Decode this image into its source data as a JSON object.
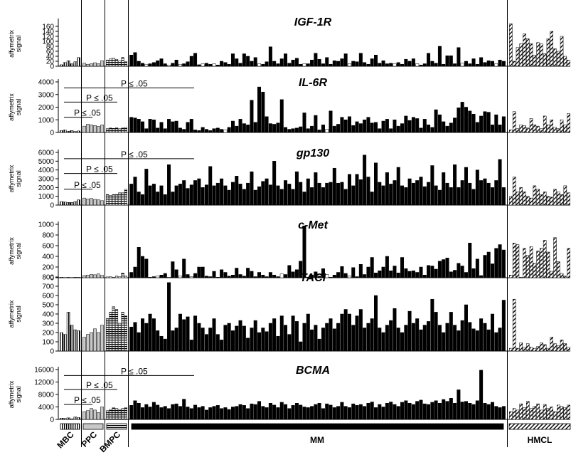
{
  "figure": {
    "y_axis_label_line1": "affymetrix",
    "y_axis_label_line2": "signal",
    "groups": [
      {
        "label": "MBC",
        "count": 6
      },
      {
        "label": "PPC",
        "count": 6
      },
      {
        "label": "BMPC",
        "count": 7
      },
      {
        "label": "MM",
        "count": 100
      },
      {
        "label": "HMCL",
        "count": 18
      }
    ]
  },
  "colors": {
    "mm": "#000000",
    "background": "#ffffff",
    "axis": "#000000"
  },
  "chart_data": [
    {
      "type": "bar",
      "title": "IGF-1R",
      "ylim": [
        0,
        180
      ],
      "yticks": [
        0,
        20,
        40,
        60,
        80,
        100,
        120,
        140,
        160
      ],
      "annotations": [],
      "groups": {
        "MBC": [
          6,
          15,
          22,
          10,
          18,
          35
        ],
        "PPC": [
          12,
          8,
          10,
          14,
          10,
          22
        ],
        "BMPC": [
          25,
          30,
          32,
          28,
          22,
          35,
          18
        ],
        "MM": [
          45,
          55,
          20,
          12,
          8,
          10,
          15,
          22,
          30,
          10,
          5,
          12,
          25,
          8,
          10,
          18,
          40,
          52,
          6,
          10,
          12,
          8,
          10,
          5,
          20,
          15,
          8,
          50,
          30,
          12,
          50,
          40,
          20,
          35,
          10,
          8,
          18,
          78,
          20,
          10,
          30,
          50,
          12,
          25,
          32,
          8,
          10,
          10,
          25,
          52,
          28,
          10,
          35,
          8,
          22,
          20,
          30,
          50,
          10,
          20,
          18,
          52,
          15,
          8,
          30,
          45,
          12,
          22,
          10,
          12,
          10,
          15,
          8,
          28,
          20,
          30,
          10,
          5,
          10,
          52,
          20,
          12,
          80,
          8,
          42,
          42,
          10,
          75,
          12,
          20,
          10,
          30,
          8,
          35,
          15,
          22,
          20,
          10,
          25,
          20
        ],
        "HMCL": [
          170,
          20,
          75,
          90,
          130,
          110,
          90,
          45,
          95,
          90,
          50,
          110,
          140,
          70,
          60,
          120,
          40,
          25
        ]
      }
    },
    {
      "type": "bar",
      "title": "IL-6R",
      "ylim": [
        0,
        4000
      ],
      "yticks": [
        0,
        1000,
        2000,
        3000,
        4000
      ],
      "annotations": [
        "P ≤ .05",
        "P ≤ .05",
        "P ≤ .05"
      ],
      "groups": {
        "MBC": [
          150,
          200,
          100,
          150,
          80,
          120
        ],
        "PPC": [
          500,
          650,
          600,
          550,
          480,
          600
        ],
        "BMPC": [
          300,
          350,
          320,
          380,
          300,
          350,
          400
        ],
        "MM": [
          1200,
          1150,
          1050,
          850,
          300,
          1050,
          1000,
          350,
          800,
          300,
          1050,
          850,
          900,
          350,
          250,
          800,
          1050,
          200,
          150,
          400,
          250,
          150,
          300,
          350,
          250,
          200,
          400,
          900,
          500,
          1050,
          700,
          600,
          2550,
          800,
          3600,
          3200,
          1250,
          700,
          650,
          750,
          2600,
          400,
          250,
          300,
          350,
          450,
          1550,
          300,
          500,
          1350,
          200,
          600,
          250,
          1700,
          500,
          650,
          1200,
          1000,
          1250,
          550,
          850,
          700,
          1000,
          1200,
          750,
          800,
          300,
          900,
          1050,
          300,
          1000,
          500,
          700,
          1300,
          950,
          1200,
          1100,
          350,
          1050,
          600,
          400,
          1800,
          1400,
          850,
          500,
          750,
          1150,
          1950,
          2400,
          2000,
          1700,
          1450,
          800,
          1300,
          1650,
          1600,
          600,
          1400,
          600,
          1250
        ],
        "HMCL": [
          200,
          1650,
          300,
          600,
          550,
          350,
          1100,
          600,
          500,
          300,
          1300,
          600,
          1000,
          400,
          300,
          1000,
          600,
          1500
        ]
      }
    },
    {
      "type": "bar",
      "title": "gp130",
      "ylim": [
        0,
        6000
      ],
      "yticks": [
        0,
        1000,
        2000,
        3000,
        4000,
        5000,
        6000
      ],
      "annotations": [
        "P ≤ .05",
        "P ≤ .05",
        "P ≤ .05"
      ],
      "groups": {
        "MBC": [
          400,
          350,
          300,
          300,
          400,
          600
        ],
        "PPC": [
          800,
          700,
          750,
          650,
          600,
          500
        ],
        "BMPC": [
          1200,
          1100,
          1200,
          1200,
          1400,
          1400,
          1800
        ],
        "MM": [
          2400,
          3200,
          1500,
          1200,
          4100,
          2200,
          2400,
          1500,
          2200,
          1200,
          4600,
          1500,
          2200,
          2400,
          2800,
          1900,
          2300,
          2800,
          3000,
          2000,
          2300,
          4400,
          2200,
          2500,
          3000,
          2200,
          1700,
          2600,
          3300,
          2400,
          1800,
          2500,
          3800,
          1700,
          2100,
          2700,
          3000,
          2300,
          5000,
          2200,
          1800,
          2800,
          2400,
          1800,
          3800,
          2600,
          1500,
          3000,
          2000,
          3700,
          2500,
          2000,
          2500,
          2600,
          4200,
          2500,
          2600,
          1800,
          3500,
          2200,
          3500,
          2900,
          5700,
          3200,
          1500,
          4800,
          2600,
          2200,
          3700,
          2400,
          2800,
          4300,
          2200,
          2000,
          3000,
          2500,
          2800,
          3200,
          2100,
          2600,
          4500,
          2200,
          1700,
          3700,
          2500,
          2000,
          4600,
          2000,
          2800,
          4300,
          2500,
          1800,
          4000,
          2800,
          3000,
          2500,
          2000,
          2800,
          5200,
          2000
        ],
        "HMCL": [
          1000,
          3200,
          1500,
          2000,
          1500,
          1000,
          800,
          2200,
          1800,
          1200,
          1500,
          1000,
          900,
          1800,
          1500,
          1200,
          2200,
          1400
        ]
      }
    },
    {
      "type": "bar",
      "title": "c-Met",
      "ylim": [
        0,
        1000
      ],
      "yticks": [
        0,
        200,
        400,
        600,
        800,
        1000
      ],
      "annotations": [],
      "groups": {
        "MBC": [
          10,
          5,
          8,
          5,
          10,
          8
        ],
        "PPC": [
          40,
          50,
          60,
          55,
          70,
          45
        ],
        "BMPC": [
          15,
          20,
          10,
          30,
          20,
          90,
          30
        ],
        "MM": [
          100,
          200,
          570,
          400,
          350,
          10,
          20,
          30,
          50,
          80,
          10,
          300,
          150,
          30,
          350,
          60,
          20,
          80,
          200,
          200,
          30,
          20,
          120,
          10,
          150,
          100,
          30,
          50,
          180,
          60,
          30,
          180,
          120,
          20,
          100,
          50,
          20,
          100,
          50,
          20,
          70,
          60,
          230,
          110,
          150,
          310,
          970,
          10,
          50,
          110,
          30,
          170,
          60,
          10,
          50,
          100,
          210,
          80,
          30,
          190,
          20,
          250,
          60,
          200,
          380,
          90,
          130,
          200,
          400,
          130,
          220,
          90,
          380,
          170,
          120,
          130,
          100,
          200,
          50,
          230,
          220,
          160,
          310,
          340,
          370,
          110,
          140,
          270,
          220,
          100,
          650,
          170,
          350,
          40,
          420,
          480,
          260,
          550,
          620,
          520
        ],
        "HMCL": [
          50,
          650,
          620,
          10,
          550,
          420,
          580,
          270,
          500,
          550,
          700,
          480,
          120,
          750,
          300,
          80,
          30,
          550
        ]
      }
    },
    {
      "type": "bar",
      "title": "TACI",
      "ylim": [
        0,
        800
      ],
      "yticks": [
        0,
        100,
        200,
        300,
        400,
        500,
        600,
        700,
        800
      ],
      "annotations": [],
      "groups": {
        "MBC": [
          200,
          180,
          420,
          280,
          230,
          220
        ],
        "PPC": [
          150,
          180,
          200,
          240,
          200,
          280
        ],
        "BMPC": [
          350,
          420,
          480,
          450,
          300,
          420,
          380
        ],
        "MM": [
          260,
          310,
          200,
          350,
          300,
          400,
          350,
          220,
          160,
          130,
          740,
          220,
          250,
          400,
          340,
          370,
          120,
          380,
          300,
          250,
          180,
          250,
          350,
          180,
          120,
          280,
          300,
          220,
          270,
          330,
          270,
          140,
          250,
          330,
          200,
          250,
          210,
          300,
          350,
          160,
          380,
          280,
          180,
          380,
          320,
          100,
          300,
          400,
          230,
          280,
          130,
          250,
          300,
          350,
          240,
          300,
          400,
          450,
          400,
          280,
          380,
          450,
          250,
          300,
          350,
          600,
          250,
          200,
          280,
          330,
          460,
          250,
          200,
          280,
          430,
          300,
          350,
          230,
          280,
          320,
          560,
          420,
          280,
          200,
          300,
          420,
          280,
          220,
          330,
          500,
          310,
          240,
          220,
          350,
          300,
          230,
          400,
          200,
          250,
          550
        ],
        "HMCL": [
          30,
          560,
          30,
          90,
          40,
          80,
          40,
          30,
          50,
          90,
          70,
          30,
          150,
          80,
          60,
          120,
          80,
          40
        ]
      }
    },
    {
      "type": "bar",
      "title": "BCMA",
      "ylim": [
        0,
        16000
      ],
      "yticks": [
        0,
        4000,
        8000,
        12000,
        16000
      ],
      "annotations": [
        "P ≤ .05",
        "P ≤ .05",
        "P ≤ .05"
      ],
      "groups": {
        "MBC": [
          400,
          300,
          500,
          200,
          800,
          600
        ],
        "PPC": [
          2500,
          2800,
          3500,
          3000,
          2200,
          4000
        ],
        "BMPC": [
          2800,
          3200,
          3800,
          3500,
          3200,
          3500,
          3800
        ],
        "MM": [
          4500,
          6000,
          5200,
          3800,
          4800,
          4000,
          5500,
          4600,
          3800,
          4200,
          3500,
          4800,
          5000,
          4200,
          6500,
          4000,
          3500,
          4600,
          3800,
          4200,
          3000,
          3800,
          4200,
          4500,
          3500,
          3800,
          3200,
          4000,
          4200,
          4800,
          4500,
          3500,
          5000,
          4800,
          5800,
          4200,
          3800,
          5200,
          4600,
          3800,
          5500,
          4800,
          3500,
          4500,
          5200,
          4600,
          4000,
          3800,
          4200,
          4800,
          5200,
          3500,
          5000,
          4600,
          3800,
          4200,
          5500,
          4200,
          3800,
          5000,
          4500,
          4800,
          4200,
          5200,
          5600,
          3800,
          4800,
          4000,
          5200,
          5600,
          4800,
          4200,
          5500,
          6000,
          5200,
          4800,
          5800,
          6200,
          5000,
          4800,
          5500,
          6000,
          5200,
          6400,
          5800,
          6800,
          5200,
          9500,
          5600,
          5800,
          5200,
          4800,
          6000,
          15800,
          5200,
          4800,
          5500,
          4200,
          3800,
          4200
        ],
        "HMCL": [
          2500,
          3500,
          3000,
          5000,
          3800,
          5800,
          3500,
          4200,
          5000,
          3000,
          4800,
          3500,
          4000,
          2500,
          4600,
          4200,
          3800,
          4600
        ]
      }
    }
  ]
}
